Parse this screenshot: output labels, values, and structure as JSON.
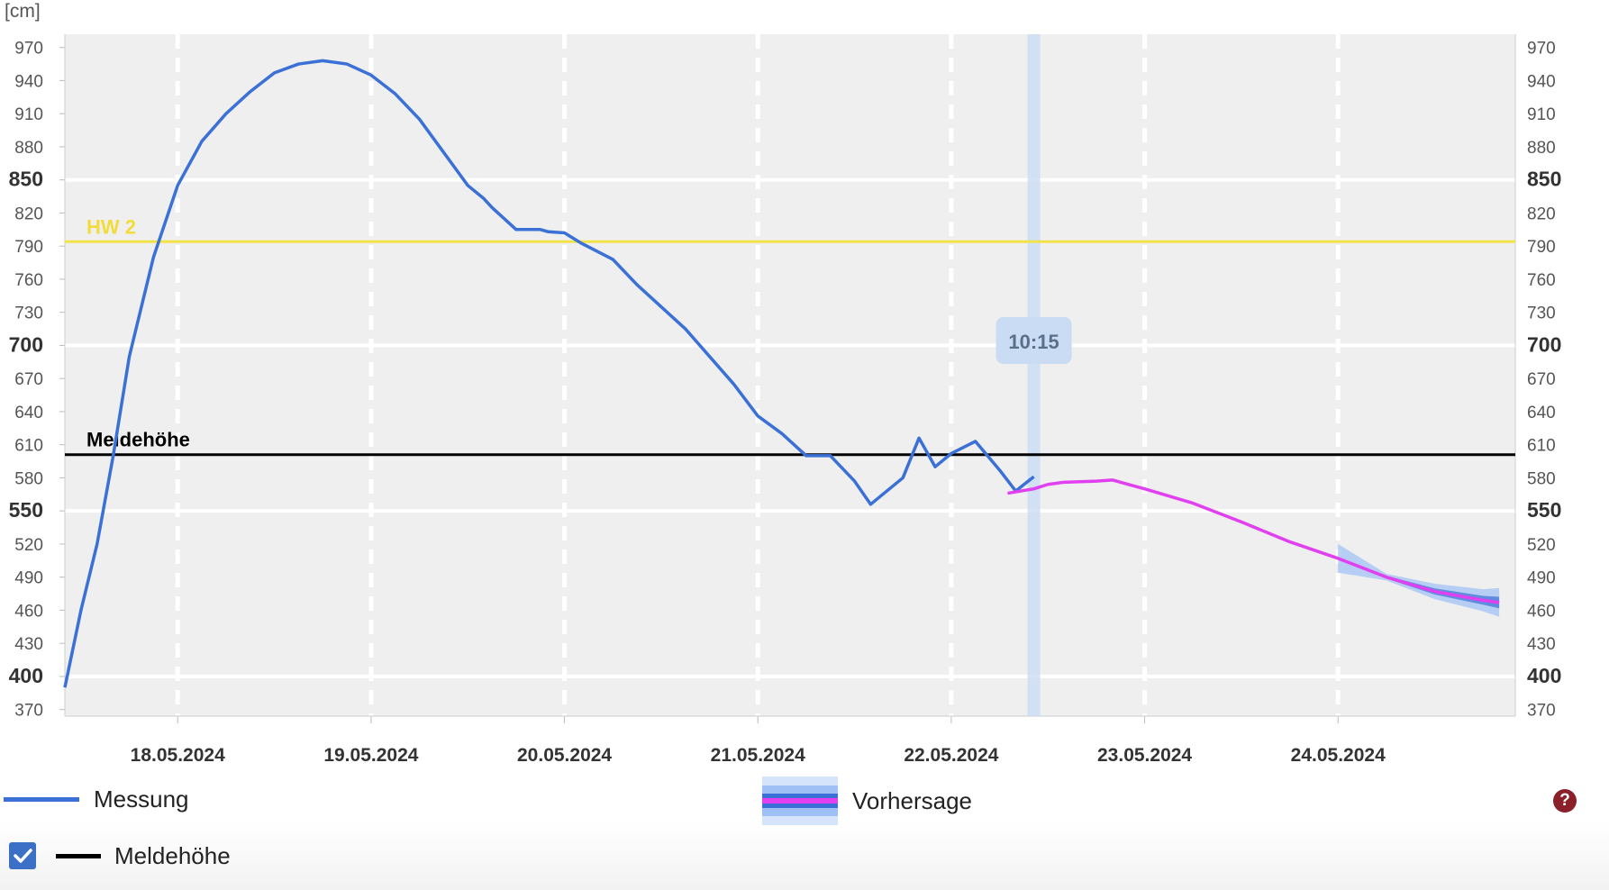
{
  "unit_label": "[cm]",
  "now_label": "10:15",
  "colors": {
    "plot_bg": "#efefef",
    "measurement": "#3b70d6",
    "forecast": "#e040f0",
    "forecast_band": "#9ec0f5",
    "hw2_line": "#f2e24a",
    "meldehoehe_line": "#000000",
    "now_band": "#c9dcf3"
  },
  "legend": {
    "measurement": "Messung",
    "forecast": "Vorhersage",
    "meldehoehe": "Meldehöhe",
    "help": "?"
  },
  "chart_data": {
    "type": "line",
    "ylabel": "[cm]",
    "ylim": [
      364,
      982
    ],
    "y_ticks": [
      370,
      400,
      430,
      460,
      490,
      520,
      550,
      580,
      610,
      640,
      670,
      700,
      730,
      760,
      790,
      820,
      850,
      880,
      910,
      940,
      970
    ],
    "y_major_ticks": [
      400,
      550,
      700,
      850
    ],
    "x_range_days": [
      "17.05.2024 10:00",
      "24.05.2024 22:00"
    ],
    "x_tick_labels": [
      "18.05.2024",
      "19.05.2024",
      "20.05.2024",
      "21.05.2024",
      "22.05.2024",
      "23.05.2024",
      "24.05.2024"
    ],
    "grid": true,
    "thresholds": [
      {
        "name": "HW 2",
        "value": 794
      },
      {
        "name": "Meldehöhe",
        "value": 601
      }
    ],
    "now_marker": {
      "time": "22.05.2024 10:15",
      "label": "10:15"
    },
    "series": [
      {
        "name": "Messung",
        "x": [
          "17.05.2024 10:00",
          "17.05.2024 12:00",
          "17.05.2024 14:00",
          "17.05.2024 16:00",
          "17.05.2024 18:00",
          "17.05.2024 21:00",
          "18.05.2024 00:00",
          "18.05.2024 03:00",
          "18.05.2024 06:00",
          "18.05.2024 09:00",
          "18.05.2024 12:00",
          "18.05.2024 15:00",
          "18.05.2024 18:00",
          "18.05.2024 21:00",
          "19.05.2024 00:00",
          "19.05.2024 03:00",
          "19.05.2024 06:00",
          "19.05.2024 09:00",
          "19.05.2024 12:00",
          "19.05.2024 14:00",
          "19.05.2024 15:00",
          "19.05.2024 18:00",
          "19.05.2024 21:00",
          "19.05.2024 22:00",
          "20.05.2024 00:00",
          "20.05.2024 02:00",
          "20.05.2024 06:00",
          "20.05.2024 09:00",
          "20.05.2024 12:00",
          "20.05.2024 15:00",
          "20.05.2024 18:00",
          "20.05.2024 21:00",
          "21.05.2024 00:00",
          "21.05.2024 03:00",
          "21.05.2024 06:00",
          "21.05.2024 09:00",
          "21.05.2024 12:00",
          "21.05.2024 14:00",
          "21.05.2024 18:00",
          "21.05.2024 20:00",
          "21.05.2024 22:00",
          "22.05.2024 00:00",
          "22.05.2024 03:00",
          "22.05.2024 06:00",
          "22.05.2024 08:00",
          "22.05.2024 10:15"
        ],
        "values": [
          390,
          460,
          520,
          600,
          690,
          780,
          845,
          885,
          910,
          930,
          947,
          955,
          958,
          955,
          945,
          928,
          905,
          875,
          845,
          833,
          825,
          805,
          805,
          803,
          802,
          793,
          778,
          755,
          735,
          715,
          690,
          665,
          636,
          620,
          600,
          600,
          577,
          556,
          580,
          616,
          590,
          602,
          613,
          587,
          568,
          581
        ]
      },
      {
        "name": "Vorhersage",
        "x": [
          "22.05.2024 07:00",
          "22.05.2024 10:15",
          "22.05.2024 12:00",
          "22.05.2024 14:00",
          "22.05.2024 18:00",
          "22.05.2024 20:00",
          "22.05.2024 22:00",
          "23.05.2024 00:00",
          "23.05.2024 06:00",
          "23.05.2024 12:00",
          "23.05.2024 18:00",
          "24.05.2024 00:00",
          "24.05.2024 06:00",
          "24.05.2024 12:00",
          "24.05.2024 18:00",
          "24.05.2024 20:00"
        ],
        "values": [
          566,
          570,
          574,
          576,
          577,
          578,
          574,
          570,
          557,
          540,
          522,
          507,
          490,
          477,
          469,
          467
        ],
        "band_start": "24.05.2024 00:00",
        "band_spread": [
          0,
          3,
          7,
          10,
          13
        ]
      }
    ]
  }
}
